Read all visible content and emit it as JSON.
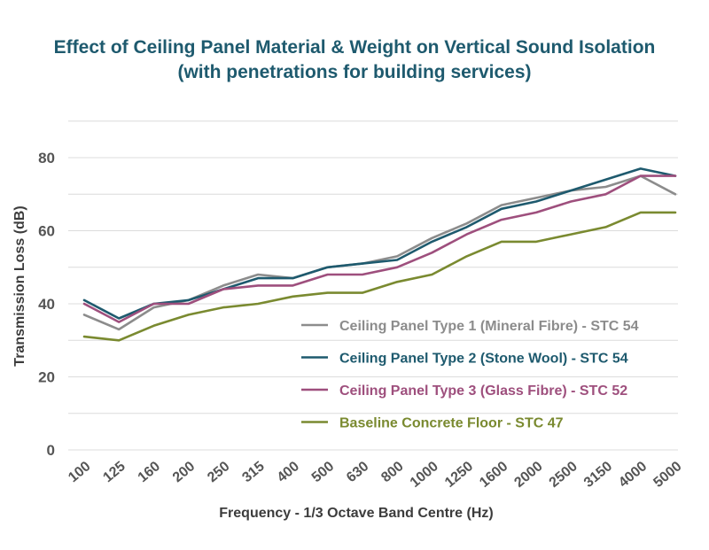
{
  "chart_data": {
    "type": "line",
    "title": "Effect of Ceiling Panel Material & Weight on Vertical Sound Isolation",
    "subtitle": "(with penetrations for building services)",
    "xlabel": "Frequency - 1/3 Octave Band Centre (Hz)",
    "ylabel": "Transmission Loss (dB)",
    "ylim": [
      0,
      80
    ],
    "yticks": [
      "0",
      "20",
      "40",
      "60",
      "80"
    ],
    "categories": [
      "100",
      "125",
      "160",
      "200",
      "250",
      "315",
      "400",
      "500",
      "630",
      "800",
      "1000",
      "1250",
      "1600",
      "2000",
      "2500",
      "3150",
      "4000",
      "5000"
    ],
    "grid": "horizontal",
    "legend_position": "bottom-right",
    "series": [
      {
        "name": "Ceiling Panel Type 1 (Mineral Fibre) - STC 54",
        "color": "#8c8c8c",
        "values": [
          37,
          33,
          39,
          41,
          45,
          48,
          47,
          50,
          51,
          53,
          58,
          62,
          67,
          69,
          71,
          72,
          75,
          70
        ]
      },
      {
        "name": "Ceiling Panel Type 2 (Stone Wool) - STC 54",
        "color": "#1e5a6e",
        "values": [
          41,
          36,
          40,
          41,
          44,
          47,
          47,
          50,
          51,
          52,
          57,
          61,
          66,
          68,
          71,
          74,
          77,
          75
        ]
      },
      {
        "name": "Ceiling Panel Type 3 (Glass Fibre) - STC 52",
        "color": "#9e4f7d",
        "values": [
          40,
          35,
          40,
          40,
          44,
          45,
          45,
          48,
          48,
          50,
          54,
          59,
          63,
          65,
          68,
          70,
          75,
          75
        ]
      },
      {
        "name": "Baseline Concrete Floor - STC 47",
        "color": "#7a8a30",
        "values": [
          31,
          30,
          34,
          37,
          39,
          40,
          42,
          43,
          43,
          46,
          48,
          53,
          57,
          57,
          59,
          61,
          65,
          65
        ]
      }
    ]
  }
}
